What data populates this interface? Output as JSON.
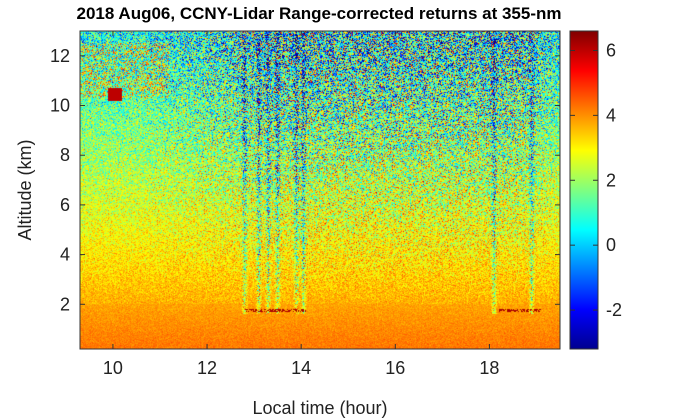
{
  "chart_data": {
    "type": "heatmap",
    "title": "2018 Aug06, CCNY-Lidar Range-corrected returns at 355-nm",
    "xlabel": "Local time (hour)",
    "ylabel": "Altitude (km)",
    "xlim": [
      9.3,
      19.5
    ],
    "ylim": [
      0.2,
      13.0
    ],
    "xticks": [
      10,
      12,
      14,
      16,
      18
    ],
    "yticks": [
      2,
      4,
      6,
      8,
      10,
      12
    ],
    "colorbar": {
      "colormap": "jet",
      "limits": [
        -3.2,
        6.6
      ],
      "ticks": [
        -2,
        0,
        2,
        4,
        6
      ]
    },
    "features": {
      "boundary_layer_top_km": 2.0,
      "noise_columns_hour": [
        12.8,
        13.1,
        13.3,
        13.5,
        13.9,
        14.05,
        18.1,
        18.9
      ]
    }
  }
}
